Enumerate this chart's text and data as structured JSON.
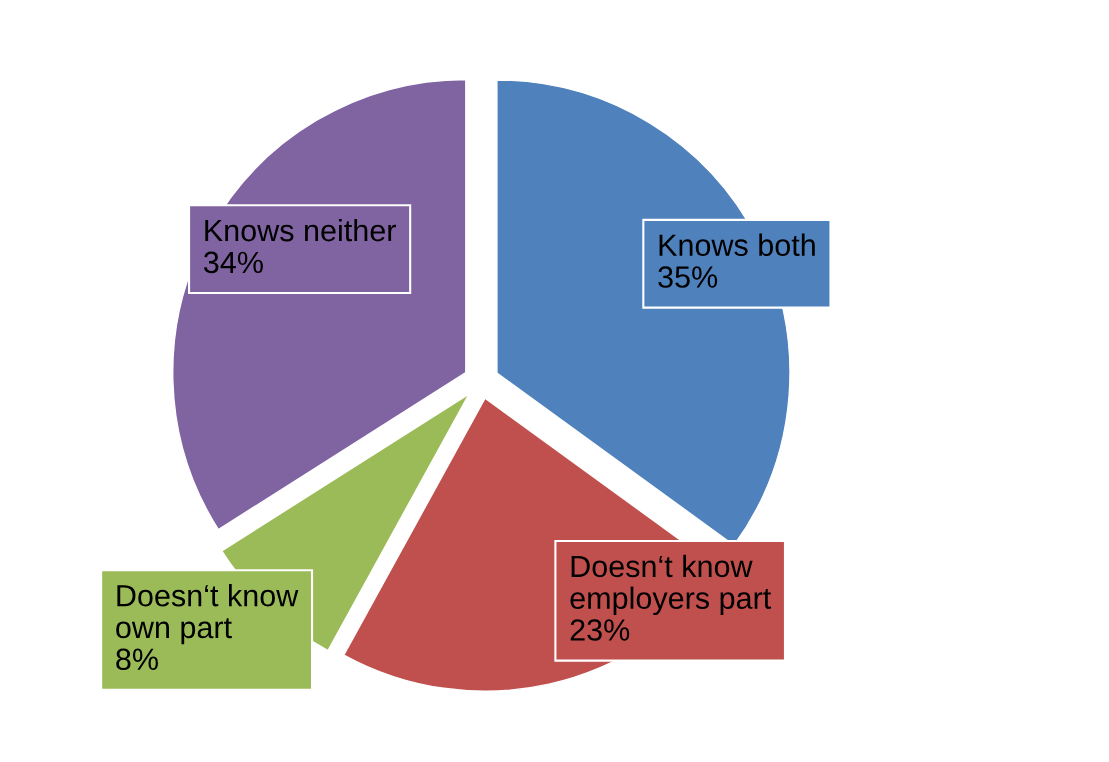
{
  "chart_data": {
    "type": "pie",
    "categories": [
      "Knows both",
      "Doesn‘t know employers part",
      "Doesn‘t know own part",
      "Knows neither"
    ],
    "values": [
      35,
      23,
      8,
      34
    ],
    "value_labels": [
      "35%",
      "23%",
      "8%",
      "34%"
    ],
    "colors": [
      "#4f81bd",
      "#c0504d",
      "#9bbb59",
      "#8064a2"
    ],
    "legend": false
  }
}
